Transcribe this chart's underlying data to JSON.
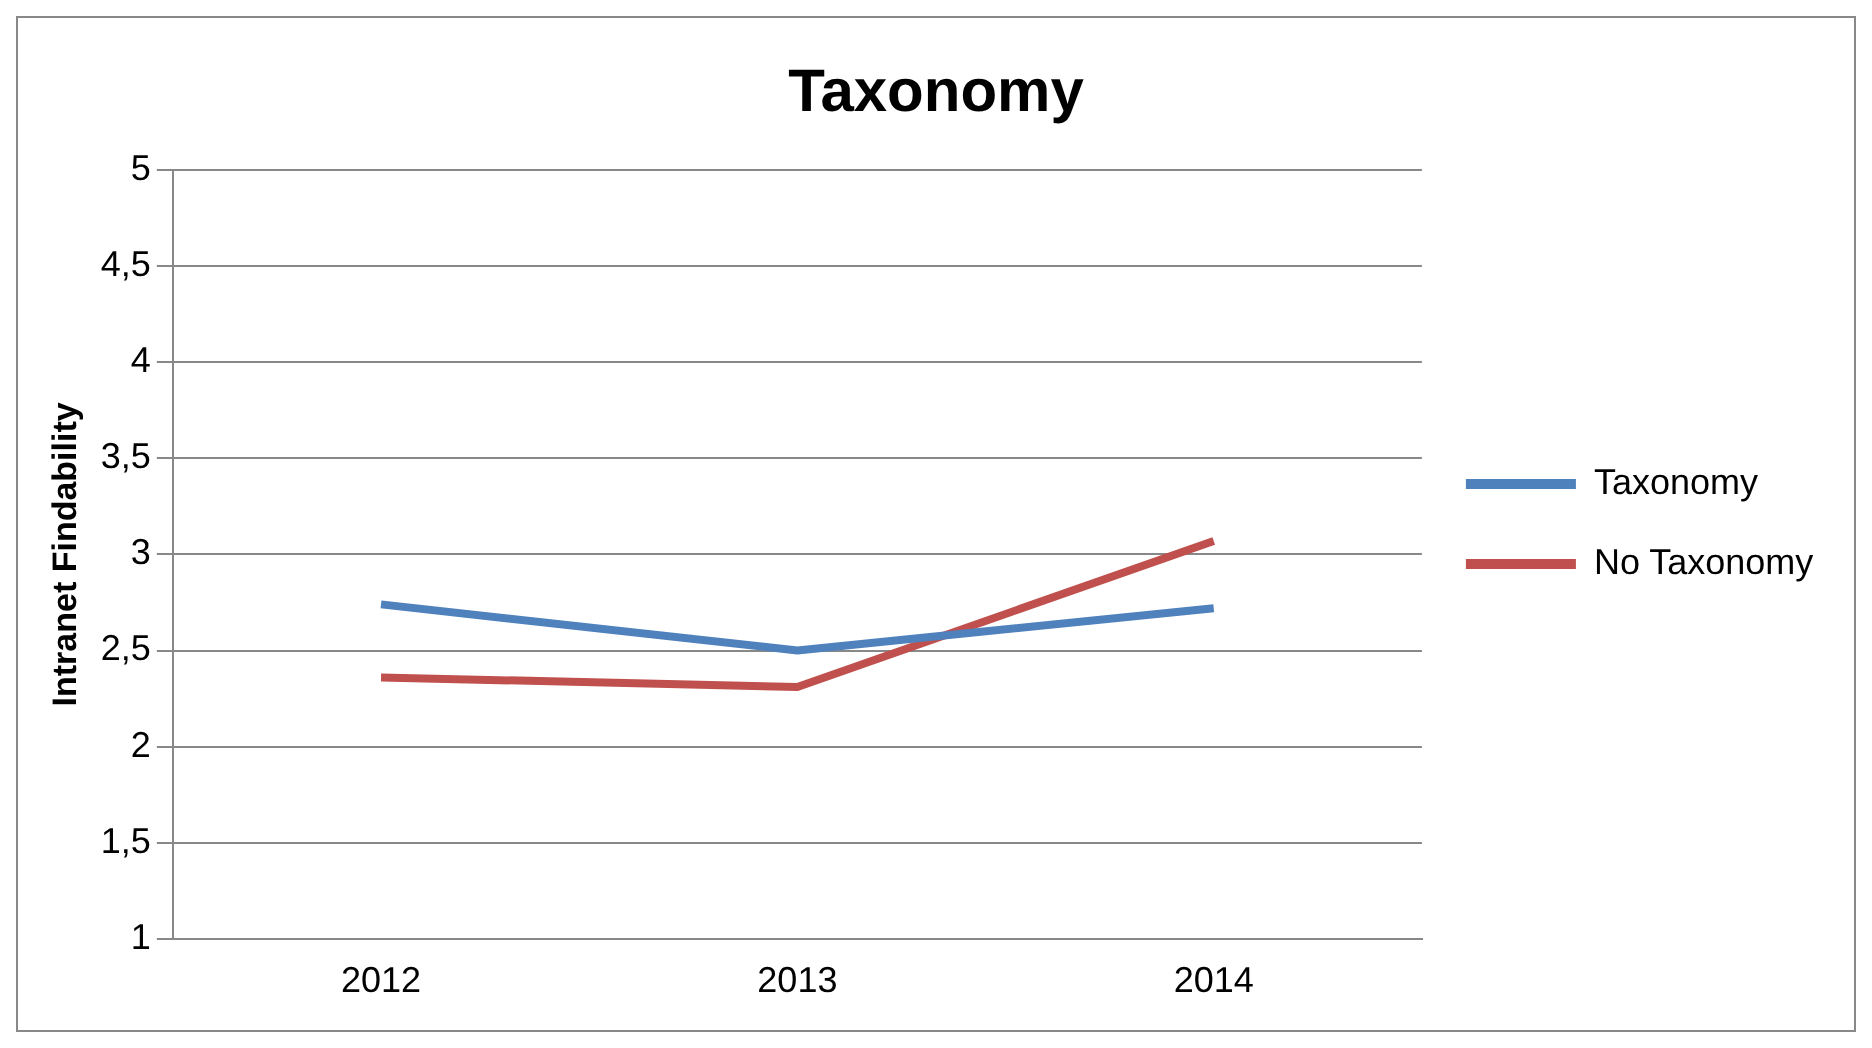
{
  "chart_data": {
    "type": "line",
    "title": "Taxonomy",
    "ylabel": "Intranet Findability",
    "categories": [
      "2012",
      "2013",
      "2014"
    ],
    "series": [
      {
        "name": "Taxonomy",
        "color": "#4f81bd",
        "values": [
          2.74,
          2.5,
          2.72
        ]
      },
      {
        "name": "No Taxonomy",
        "color": "#c0504d",
        "values": [
          2.36,
          2.31,
          3.07
        ]
      }
    ],
    "ylim": [
      1,
      5
    ],
    "yticks": [
      1,
      {
        "value": 1.5,
        "label": "1,5"
      },
      2,
      {
        "value": 2.5,
        "label": "2,5"
      },
      3,
      {
        "value": 3.5,
        "label": "3,5"
      },
      4,
      {
        "value": 4.5,
        "label": "4,5"
      },
      5
    ],
    "grid": "y",
    "legend": "right",
    "marker": "none"
  }
}
